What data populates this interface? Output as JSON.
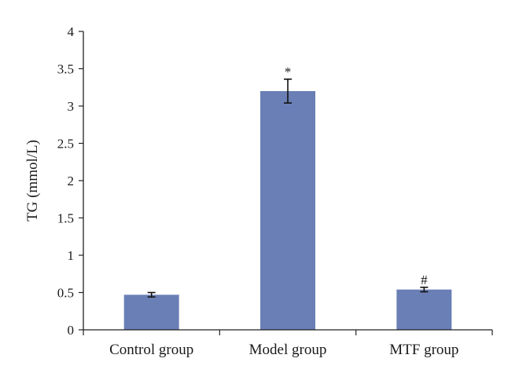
{
  "chart_data": {
    "type": "bar",
    "title": "",
    "xlabel": "",
    "ylabel": "TG (mmol/L)",
    "categories": [
      "Control group",
      "Model group",
      "MTF group"
    ],
    "values": [
      0.47,
      3.2,
      0.54
    ],
    "errors": [
      0.03,
      0.16,
      0.03
    ],
    "annotations": [
      "",
      "*",
      "#"
    ],
    "ylim": [
      0,
      4
    ],
    "yticks": [
      0,
      0.5,
      1,
      1.5,
      2,
      2.5,
      3,
      3.5,
      4
    ],
    "ytick_labels": [
      "0",
      "0.5",
      "1",
      "1.5",
      "2",
      "2.5",
      "3",
      "3.5",
      "4"
    ],
    "grid": false,
    "bar_color": "#6a7fb5"
  }
}
